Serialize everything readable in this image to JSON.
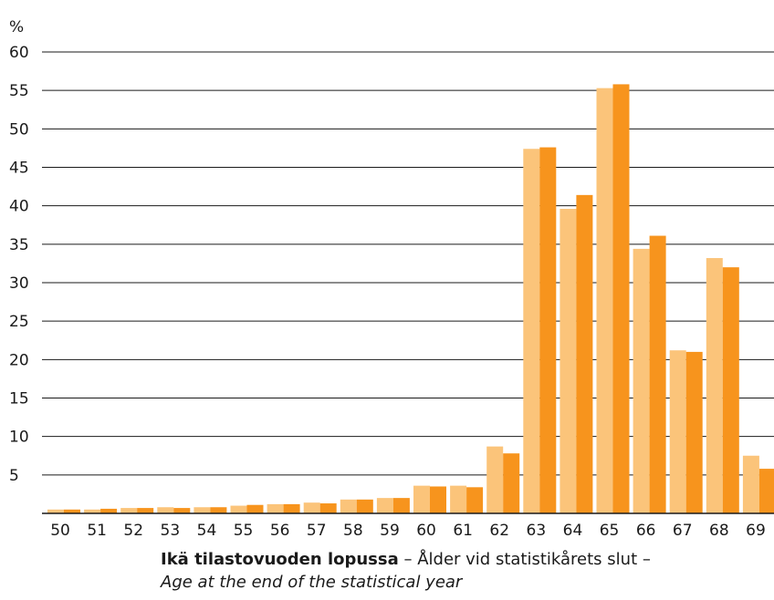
{
  "chart_data": {
    "type": "bar",
    "unit_label": "%",
    "ylim": [
      0,
      60
    ],
    "yticks": [
      5,
      10,
      15,
      20,
      25,
      30,
      35,
      40,
      45,
      50,
      55,
      60
    ],
    "grid": true,
    "categories": [
      "50",
      "51",
      "52",
      "53",
      "54",
      "55",
      "56",
      "57",
      "58",
      "59",
      "60",
      "61",
      "62",
      "63",
      "64",
      "65",
      "66",
      "67",
      "68",
      "69"
    ],
    "series": [
      {
        "color": "#fbc47a",
        "values": [
          0.5,
          0.5,
          0.7,
          0.8,
          0.8,
          1.0,
          1.2,
          1.4,
          1.8,
          2.0,
          3.6,
          3.6,
          8.7,
          47.4,
          39.6,
          55.3,
          34.4,
          21.2,
          33.2,
          7.5
        ]
      },
      {
        "color": "#f7941d",
        "values": [
          0.5,
          0.6,
          0.7,
          0.7,
          0.8,
          1.1,
          1.2,
          1.3,
          1.8,
          2.0,
          3.5,
          3.4,
          7.8,
          47.6,
          41.4,
          55.8,
          36.1,
          21.0,
          32.0,
          5.8
        ]
      }
    ],
    "xlabel": {
      "bold": "Ikä tilastovuoden lopussa",
      "rest": " – Ålder vid statistikårets slut –",
      "italic": "Age at the end of the statistical year"
    }
  }
}
